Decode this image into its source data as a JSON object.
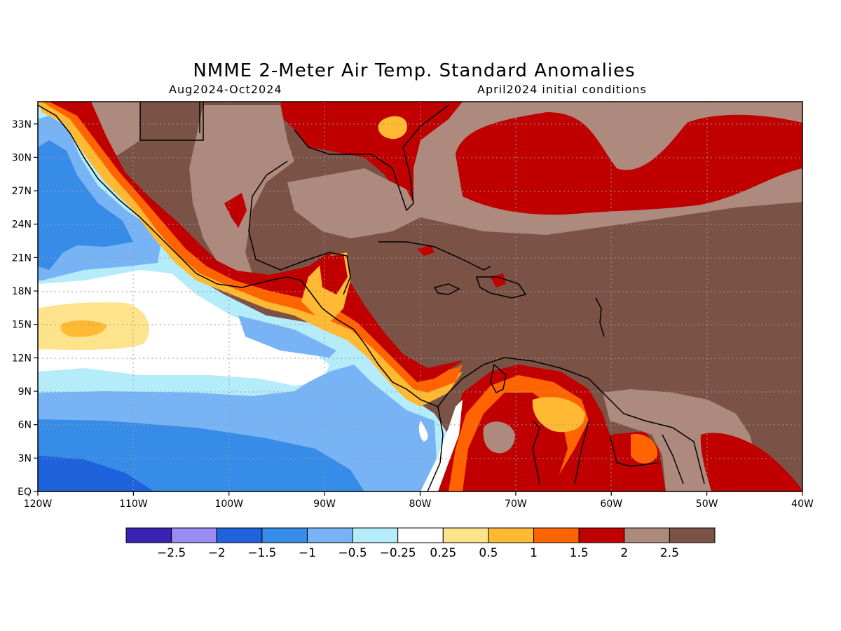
{
  "header": {
    "title": "NMME 2-Meter Air Temp. Standard Anomalies",
    "period": "Aug2024-Oct2024",
    "init": "April2024 initial conditions"
  },
  "axes": {
    "lon_labels": [
      "120W",
      "110W",
      "100W",
      "90W",
      "80W",
      "70W",
      "60W",
      "50W",
      "40W"
    ],
    "lat_labels": [
      "EQ",
      "3N",
      "6N",
      "9N",
      "12N",
      "15N",
      "18N",
      "21N",
      "24N",
      "27N",
      "30N",
      "33N"
    ],
    "lon_range": [
      -120,
      -40
    ],
    "lat_range": [
      0,
      35
    ],
    "grid": true
  },
  "colorbar": {
    "labels": [
      "-2.5",
      "-2",
      "-1.5",
      "-1",
      "-0.5",
      "-0.25",
      "0.25",
      "0.5",
      "1",
      "1.5",
      "2",
      "2.5"
    ],
    "colors": [
      "#3a22b4",
      "#9b8cf3",
      "#1e63dc",
      "#368ce6",
      "#78b4f5",
      "#b4ecfa",
      "#ffffff",
      "#fde48c",
      "#ffb932",
      "#ff6400",
      "#c00000",
      "#ad8a7d",
      "#7a5246"
    ]
  },
  "legend_colors": {
    "lt_blue": "#b4ecfa",
    "mid_blue": "#78b4f5",
    "blue": "#368ce6",
    "dk_blue": "#1e63dc",
    "white": "#ffffff",
    "yellow": "#fde48c",
    "gold": "#ffb932",
    "orange": "#ff6400",
    "red": "#c00000",
    "pinkbrown": "#ad8a7d",
    "brown": "#7a5246"
  }
}
